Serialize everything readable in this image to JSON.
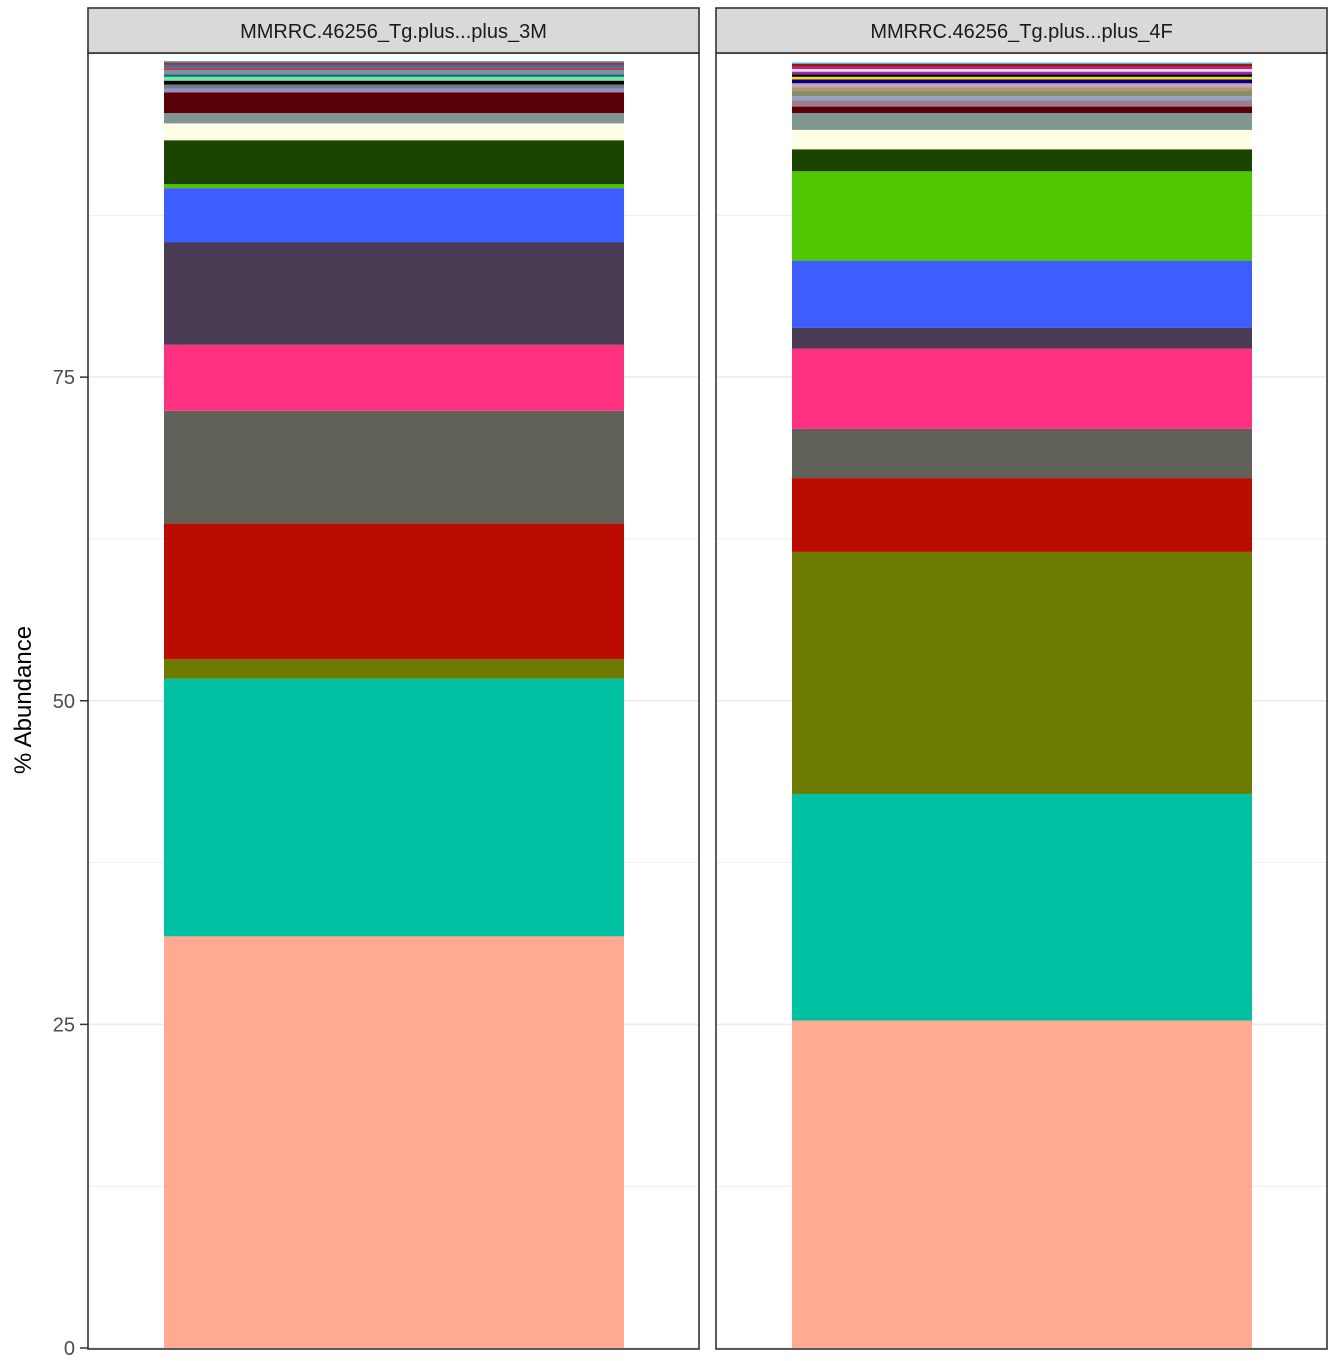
{
  "chart_data": {
    "type": "bar",
    "stacked": true,
    "ylabel": "% Abundance",
    "xlabel": "",
    "ylim": [
      0,
      100
    ],
    "y_ticks": [
      0,
      25,
      50,
      75
    ],
    "grid": true,
    "legend": "none",
    "panels": [
      {
        "label": "MMRRC.46256_Tg.plus...plus_3M",
        "segments": [
          {
            "value": 31.8,
            "color": "#FFAA91"
          },
          {
            "value": 19.9,
            "color": "#00C1A2"
          },
          {
            "value": 1.5,
            "color": "#6D7A00"
          },
          {
            "value": 10.5,
            "color": "#BA0C00"
          },
          {
            "value": 8.7,
            "color": "#626159"
          },
          {
            "value": 5.1,
            "color": "#FF3180"
          },
          {
            "value": 7.9,
            "color": "#4A3C54"
          },
          {
            "value": 4.2,
            "color": "#3E5DFF"
          },
          {
            "value": 0.3,
            "color": "#4FC601"
          },
          {
            "value": 3.4,
            "color": "#1B4400"
          },
          {
            "value": 1.3,
            "color": "#FFFFE5"
          },
          {
            "value": 0.8,
            "color": "#809693"
          },
          {
            "value": 1.6,
            "color": "#5A0007"
          },
          {
            "value": 0.3,
            "color": "#9A8BC6"
          },
          {
            "value": 0.3,
            "color": "#6A7E8C"
          },
          {
            "value": 0.3,
            "color": "#000000"
          },
          {
            "value": 0.3,
            "color": "#6FEAA0"
          },
          {
            "value": 0.2,
            "color": "#1D6677"
          },
          {
            "value": 0.3,
            "color": "#6D9AA6"
          },
          {
            "value": 0.2,
            "color": "#C03A58"
          },
          {
            "value": 0.2,
            "color": "#2F6B9E"
          },
          {
            "value": 0.2,
            "color": "#9C3A3A"
          },
          {
            "value": 0.1,
            "color": "#3F8AB3"
          }
        ]
      },
      {
        "label": "MMRRC.46256_Tg.plus...plus_4F",
        "segments": [
          {
            "value": 25.3,
            "color": "#FFAA91"
          },
          {
            "value": 17.5,
            "color": "#00C1A2"
          },
          {
            "value": 18.7,
            "color": "#6D7A00"
          },
          {
            "value": 5.7,
            "color": "#BA0C00"
          },
          {
            "value": 3.8,
            "color": "#626159"
          },
          {
            "value": 6.2,
            "color": "#FF3180"
          },
          {
            "value": 1.6,
            "color": "#4A3C54"
          },
          {
            "value": 5.2,
            "color": "#3E5DFF"
          },
          {
            "value": 6.9,
            "color": "#4FC601"
          },
          {
            "value": 1.7,
            "color": "#1B4400"
          },
          {
            "value": 1.5,
            "color": "#FFFFE5"
          },
          {
            "value": 1.3,
            "color": "#809693"
          },
          {
            "value": 0.5,
            "color": "#5A0007"
          },
          {
            "value": 0.5,
            "color": "#A07B8E"
          },
          {
            "value": 0.3,
            "color": "#8FA2C8"
          },
          {
            "value": 0.4,
            "color": "#8A8A6E"
          },
          {
            "value": 0.3,
            "color": "#B09A5E"
          },
          {
            "value": 0.3,
            "color": "#C8A2C8"
          },
          {
            "value": 0.3,
            "color": "#000080"
          },
          {
            "value": 0.2,
            "color": "#FFD700"
          },
          {
            "value": 0.2,
            "color": "#000000"
          },
          {
            "value": 0.2,
            "color": "#9C27B0"
          },
          {
            "value": 0.2,
            "color": "#E0E0F0"
          },
          {
            "value": 0.2,
            "color": "#D01C6E"
          },
          {
            "value": 0.2,
            "color": "#8B1A1A"
          },
          {
            "value": 0.1,
            "color": "#3FA9F5"
          }
        ]
      }
    ]
  }
}
